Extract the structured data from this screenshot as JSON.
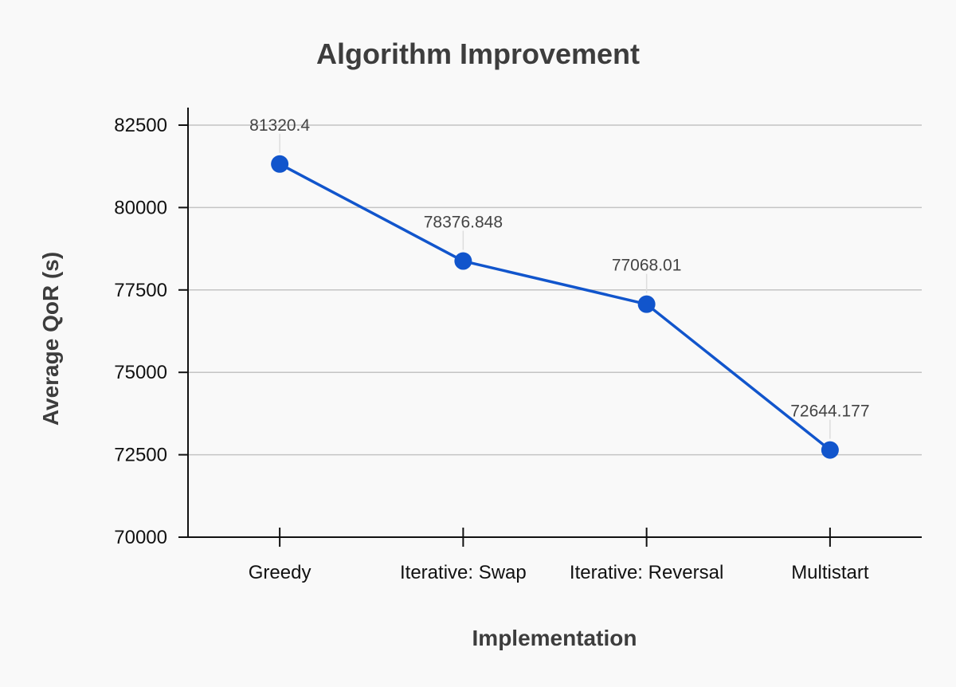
{
  "chart_data": {
    "type": "line",
    "title": "Algorithm Improvement",
    "xlabel": "Implementation",
    "ylabel": "Average QoR (s)",
    "categories": [
      "Greedy",
      "Iterative: Swap",
      "Iterative: Reversal",
      "Multistart"
    ],
    "series": [
      {
        "values": [
          81320.4,
          78376.848,
          77068.01,
          72644.177
        ],
        "data_labels": [
          "81320.4",
          "78376.848",
          "77068.01",
          "72644.177"
        ],
        "color": "#1155cc"
      }
    ],
    "ylim": [
      70000,
      82500
    ],
    "yticks": [
      70000,
      72500,
      75000,
      77500,
      80000,
      82500
    ],
    "ytick_labels": [
      "70000",
      "72500",
      "75000",
      "77500",
      "80000",
      "82500"
    ],
    "grid": true,
    "legend": "none"
  }
}
